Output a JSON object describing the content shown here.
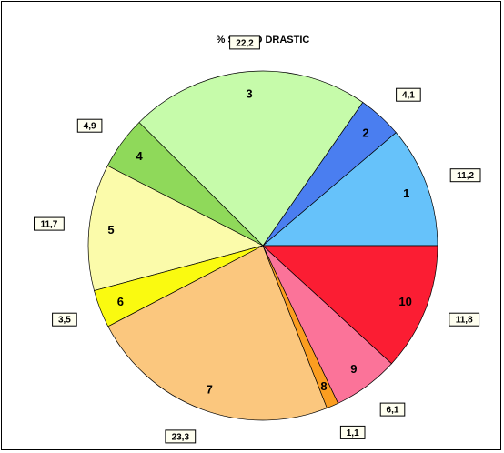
{
  "chart_data": {
    "type": "pie",
    "title": "% SUELO DRASTIC",
    "categories": [
      "1",
      "2",
      "3",
      "4",
      "5",
      "6",
      "7",
      "8",
      "9",
      "10"
    ],
    "values": [
      11.2,
      4.1,
      22.2,
      4.9,
      11.7,
      3.5,
      23.3,
      1.1,
      6.1,
      11.8
    ],
    "value_labels": [
      "11,2",
      "4,1",
      "22,2",
      "4,9",
      "11,7",
      "3,5",
      "23,3",
      "1,1",
      "6,1",
      "11,8"
    ],
    "colors": [
      "#66c2fa",
      "#4a7ef0",
      "#c6fbaa",
      "#8fd95a",
      "#fbfbaa",
      "#fafa10",
      "#fbc77e",
      "#fb9d20",
      "#fb7399",
      "#fb1d33"
    ],
    "start_angle_deg": 0,
    "direction": "counterclockwise",
    "legend": "none"
  }
}
